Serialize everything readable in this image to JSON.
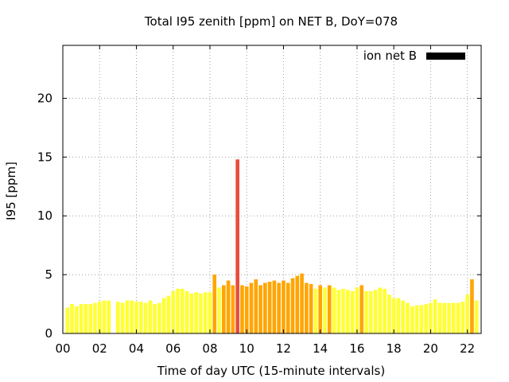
{
  "chart_data": {
    "type": "bar",
    "title": "Total I95 zenith [ppm] on NET B, DoY=078",
    "xlabel": "Time of day UTC (15-minute intervals)",
    "ylabel": "I95 [ppm]",
    "xlim": [
      0,
      22.75
    ],
    "ylim": [
      0,
      24.5
    ],
    "x_ticks": [
      0,
      2,
      4,
      6,
      8,
      10,
      12,
      14,
      16,
      18,
      20,
      22
    ],
    "x_tick_labels": [
      "00",
      "02",
      "04",
      "06",
      "08",
      "10",
      "12",
      "14",
      "16",
      "18",
      "20",
      "22"
    ],
    "y_ticks": [
      0,
      5,
      10,
      15,
      20
    ],
    "y_tick_labels": [
      "0",
      "5",
      "10",
      "15",
      "20"
    ],
    "grid": true,
    "bar_width_hours": 0.2,
    "legend": {
      "label": "ion net B",
      "position": "top-right",
      "color": "#000000"
    },
    "color_scale": [
      {
        "max": 4.0,
        "color": "#ffff33"
      },
      {
        "max": 6.0,
        "color": "#ffa500"
      },
      {
        "max": 100,
        "color": "#e84c3d"
      }
    ],
    "x": [
      0.25,
      0.5,
      0.75,
      1.0,
      1.25,
      1.5,
      1.75,
      2.0,
      2.25,
      2.5,
      3.0,
      3.25,
      3.5,
      3.75,
      4.0,
      4.25,
      4.5,
      4.75,
      5.0,
      5.25,
      5.5,
      5.75,
      6.0,
      6.25,
      6.5,
      6.75,
      7.0,
      7.25,
      7.5,
      7.75,
      8.0,
      8.25,
      8.5,
      8.75,
      9.0,
      9.25,
      9.5,
      9.75,
      10.0,
      10.25,
      10.5,
      10.75,
      11.0,
      11.25,
      11.5,
      11.75,
      12.0,
      12.25,
      12.5,
      12.75,
      13.0,
      13.25,
      13.5,
      13.75,
      14.0,
      14.25,
      14.5,
      14.75,
      15.0,
      15.25,
      15.5,
      15.75,
      16.0,
      16.25,
      16.5,
      16.75,
      17.0,
      17.25,
      17.5,
      17.75,
      18.0,
      18.25,
      18.5,
      18.75,
      19.0,
      19.25,
      19.5,
      19.75,
      20.0,
      20.25,
      20.5,
      20.75,
      21.0,
      21.25,
      21.5,
      21.75,
      22.0,
      22.25,
      22.5
    ],
    "values": [
      2.2,
      2.5,
      2.3,
      2.5,
      2.5,
      2.5,
      2.6,
      2.7,
      2.8,
      2.8,
      2.7,
      2.6,
      2.8,
      2.8,
      2.7,
      2.7,
      2.6,
      2.8,
      2.5,
      2.6,
      3.0,
      3.2,
      3.6,
      3.8,
      3.8,
      3.6,
      3.4,
      3.5,
      3.4,
      3.5,
      3.5,
      5.0,
      3.9,
      4.1,
      4.5,
      4.1,
      14.8,
      4.1,
      4.0,
      4.3,
      4.6,
      4.1,
      4.3,
      4.4,
      4.5,
      4.3,
      4.5,
      4.3,
      4.7,
      4.9,
      5.1,
      4.3,
      4.2,
      3.8,
      4.1,
      3.9,
      4.1,
      3.9,
      3.7,
      3.8,
      3.7,
      3.6,
      3.9,
      4.1,
      3.6,
      3.6,
      3.7,
      3.9,
      3.8,
      3.3,
      3.0,
      3.0,
      2.8,
      2.6,
      2.3,
      2.4,
      2.4,
      2.5,
      2.6,
      2.9,
      2.6,
      2.6,
      2.6,
      2.6,
      2.6,
      2.7,
      3.3,
      4.6,
      2.8
    ]
  }
}
